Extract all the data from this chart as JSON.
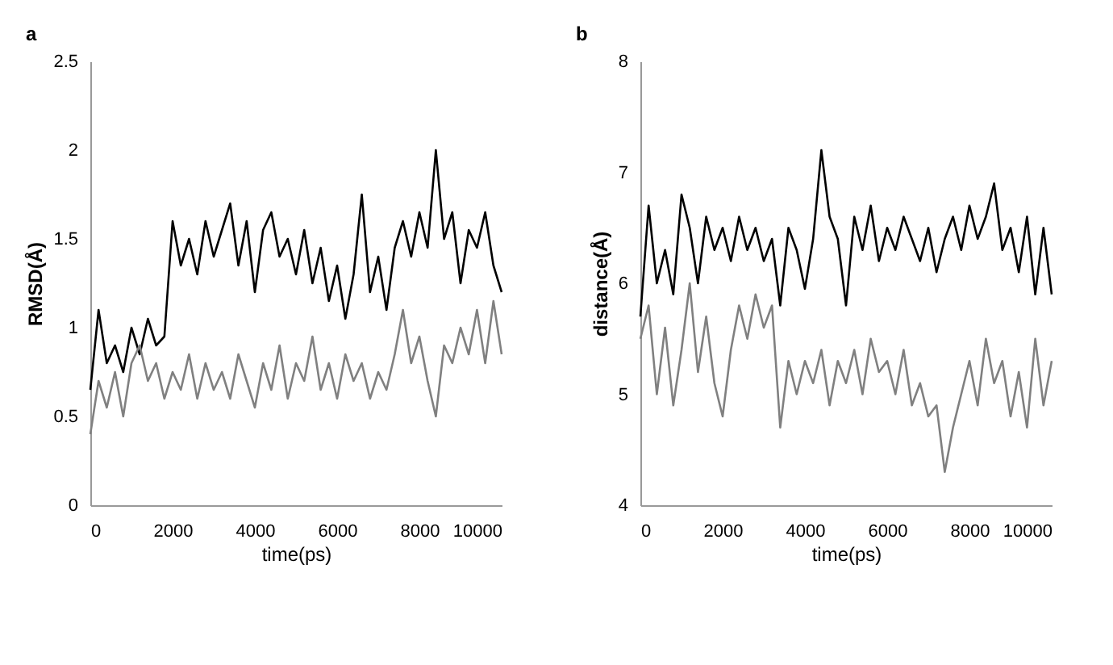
{
  "chart_data": [
    {
      "type": "line",
      "title": "a",
      "xlabel": "time(ps)",
      "ylabel": "RMSD(Å)",
      "xlim": [
        0,
        10000
      ],
      "xticks": [
        0,
        2000,
        4000,
        6000,
        8000,
        10000
      ],
      "ylim": [
        0,
        2.5
      ],
      "yticks": [
        0,
        0.5,
        1,
        1.5,
        2,
        2.5
      ],
      "grid": false,
      "legend": false,
      "marker": "none",
      "line_style": "solid",
      "x": [
        0,
        200,
        400,
        600,
        800,
        1000,
        1200,
        1400,
        1600,
        1800,
        2000,
        2200,
        2400,
        2600,
        2800,
        3000,
        3200,
        3400,
        3600,
        3800,
        4000,
        4200,
        4400,
        4600,
        4800,
        5000,
        5200,
        5400,
        5600,
        5800,
        6000,
        6200,
        6400,
        6600,
        6800,
        7000,
        7200,
        7400,
        7600,
        7800,
        8000,
        8200,
        8400,
        8600,
        8800,
        9000,
        9200,
        9400,
        9600,
        9800,
        10000
      ],
      "series": [
        {
          "color": "#000000",
          "values": [
            0.65,
            1.1,
            0.8,
            0.9,
            0.75,
            1.0,
            0.85,
            1.05,
            0.9,
            0.95,
            1.6,
            1.35,
            1.5,
            1.3,
            1.6,
            1.4,
            1.55,
            1.7,
            1.35,
            1.6,
            1.2,
            1.55,
            1.65,
            1.4,
            1.5,
            1.3,
            1.55,
            1.25,
            1.45,
            1.15,
            1.35,
            1.05,
            1.3,
            1.75,
            1.2,
            1.4,
            1.1,
            1.45,
            1.6,
            1.4,
            1.65,
            1.45,
            2.0,
            1.5,
            1.65,
            1.25,
            1.55,
            1.45,
            1.65,
            1.35,
            1.2
          ]
        },
        {
          "color": "#808080",
          "values": [
            0.4,
            0.7,
            0.55,
            0.75,
            0.5,
            0.8,
            0.9,
            0.7,
            0.8,
            0.6,
            0.75,
            0.65,
            0.85,
            0.6,
            0.8,
            0.65,
            0.75,
            0.6,
            0.85,
            0.7,
            0.55,
            0.8,
            0.65,
            0.9,
            0.6,
            0.8,
            0.7,
            0.95,
            0.65,
            0.8,
            0.6,
            0.85,
            0.7,
            0.8,
            0.6,
            0.75,
            0.65,
            0.85,
            1.1,
            0.8,
            0.95,
            0.7,
            0.5,
            0.9,
            0.8,
            1.0,
            0.85,
            1.1,
            0.8,
            1.15,
            0.85
          ]
        }
      ]
    },
    {
      "type": "line",
      "title": "b",
      "xlabel": "time(ps)",
      "ylabel": "distance(Å)",
      "xlim": [
        0,
        10000
      ],
      "xticks": [
        0,
        2000,
        4000,
        6000,
        8000,
        10000
      ],
      "ylim": [
        4,
        8
      ],
      "yticks": [
        4,
        5,
        6,
        7,
        8
      ],
      "grid": false,
      "legend": false,
      "marker": "none",
      "line_style": "solid",
      "x": [
        0,
        200,
        400,
        600,
        800,
        1000,
        1200,
        1400,
        1600,
        1800,
        2000,
        2200,
        2400,
        2600,
        2800,
        3000,
        3200,
        3400,
        3600,
        3800,
        4000,
        4200,
        4400,
        4600,
        4800,
        5000,
        5200,
        5400,
        5600,
        5800,
        6000,
        6200,
        6400,
        6600,
        6800,
        7000,
        7200,
        7400,
        7600,
        7800,
        8000,
        8200,
        8400,
        8600,
        8800,
        9000,
        9200,
        9400,
        9600,
        9800,
        10000
      ],
      "series": [
        {
          "color": "#000000",
          "values": [
            5.7,
            6.7,
            6.0,
            6.3,
            5.9,
            6.8,
            6.5,
            6.0,
            6.6,
            6.3,
            6.5,
            6.2,
            6.6,
            6.3,
            6.5,
            6.2,
            6.4,
            5.8,
            6.5,
            6.3,
            5.95,
            6.4,
            7.2,
            6.6,
            6.4,
            5.8,
            6.6,
            6.3,
            6.7,
            6.2,
            6.5,
            6.3,
            6.6,
            6.4,
            6.2,
            6.5,
            6.1,
            6.4,
            6.6,
            6.3,
            6.7,
            6.4,
            6.6,
            6.9,
            6.3,
            6.5,
            6.1,
            6.6,
            5.9,
            6.5,
            5.9
          ]
        },
        {
          "color": "#808080",
          "values": [
            5.5,
            5.8,
            5.0,
            5.6,
            4.9,
            5.4,
            6.0,
            5.2,
            5.7,
            5.1,
            4.8,
            5.4,
            5.8,
            5.5,
            5.9,
            5.6,
            5.8,
            4.7,
            5.3,
            5.0,
            5.3,
            5.1,
            5.4,
            4.9,
            5.3,
            5.1,
            5.4,
            5.0,
            5.5,
            5.2,
            5.3,
            5.0,
            5.4,
            4.9,
            5.1,
            4.8,
            4.9,
            4.3,
            4.7,
            5.0,
            5.3,
            4.9,
            5.5,
            5.1,
            5.3,
            4.8,
            5.2,
            4.7,
            5.5,
            4.9,
            5.3
          ]
        }
      ]
    }
  ]
}
